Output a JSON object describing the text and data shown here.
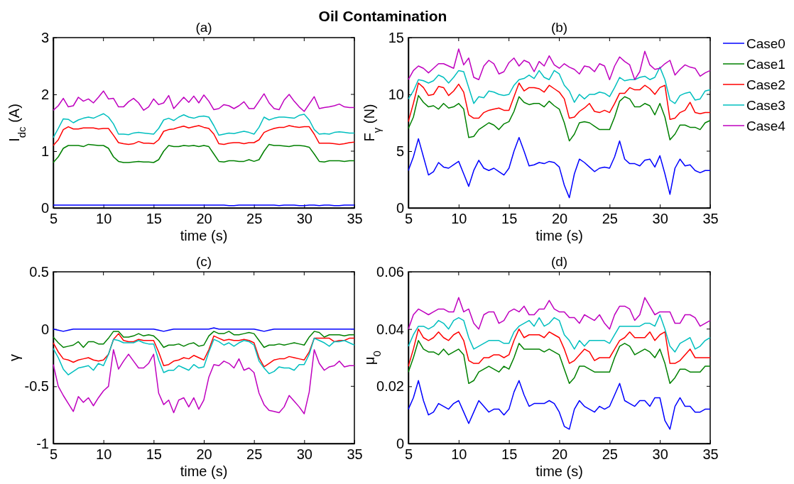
{
  "chart_data": [
    {
      "type": "other",
      "title": "Oil Contamination"
    },
    {
      "type": "line",
      "title": "(a)",
      "xlabel": "time (s)",
      "ylabel": "I$_{dc}$ (A)",
      "xlim": [
        5,
        35
      ],
      "xticks": [
        5,
        10,
        15,
        20,
        25,
        30,
        35
      ],
      "ylim": [
        0,
        3
      ],
      "yticks": [
        0,
        1,
        2,
        3
      ],
      "grid": false,
      "legend": false,
      "marker": "none",
      "line_style": "solid",
      "x": [
        5,
        5.5,
        6,
        6.5,
        7,
        7.5,
        8,
        8.5,
        9,
        9.5,
        10,
        10.5,
        11,
        11.5,
        12,
        12.5,
        13,
        13.5,
        14,
        14.5,
        15,
        15.5,
        16,
        16.5,
        17,
        17.5,
        18,
        18.5,
        19,
        19.5,
        20,
        20.5,
        21,
        21.5,
        22,
        22.5,
        23,
        23.5,
        24,
        24.5,
        25,
        25.5,
        26,
        26.5,
        27,
        27.5,
        28,
        28.5,
        29,
        29.5,
        30,
        30.5,
        31,
        31.5,
        32,
        32.5,
        33,
        33.5,
        34,
        34.5,
        35
      ],
      "series": [
        {
          "color": "#0000ff",
          "values": [
            0.05,
            0.05,
            0.05,
            0.05,
            0.05,
            0.05,
            0.05,
            0.05,
            0.05,
            0.05,
            0.05,
            0.05,
            0.05,
            0.05,
            0.05,
            0.05,
            0.05,
            0.05,
            0.05,
            0.05,
            0.05,
            0.05,
            0.05,
            0.05,
            0.05,
            0.05,
            0.05,
            0.05,
            0.05,
            0.05,
            0.05,
            0.05,
            0.05,
            0.05,
            0.05,
            0.04,
            0.04,
            0.05,
            0.05,
            0.05,
            0.05,
            0.05,
            0.05,
            0.05,
            0.05,
            0.04,
            0.05,
            0.05,
            0.05,
            0.04,
            0.04,
            0.05,
            0.05,
            0.04,
            0.05,
            0.05,
            0.04,
            0.04,
            0.05,
            0.05,
            0.05
          ]
        },
        {
          "color": "#008000",
          "values": [
            0.8,
            0.9,
            1.05,
            1.1,
            1.1,
            1.1,
            1.08,
            1.12,
            1.11,
            1.1,
            1.1,
            1.05,
            0.9,
            0.82,
            0.8,
            0.8,
            0.81,
            0.82,
            0.81,
            0.81,
            0.8,
            0.85,
            1.0,
            1.1,
            1.08,
            1.08,
            1.1,
            1.09,
            1.1,
            1.08,
            1.1,
            1.08,
            0.95,
            0.82,
            0.81,
            0.83,
            0.83,
            0.82,
            0.82,
            0.85,
            0.82,
            0.85,
            1.0,
            1.12,
            1.1,
            1.1,
            1.09,
            1.08,
            1.1,
            1.1,
            1.09,
            1.07,
            0.95,
            0.82,
            0.81,
            0.83,
            0.83,
            0.83,
            0.82,
            0.83,
            0.83
          ]
        },
        {
          "color": "#ff0000",
          "values": [
            1.1,
            1.2,
            1.38,
            1.43,
            1.39,
            1.39,
            1.41,
            1.41,
            1.41,
            1.39,
            1.4,
            1.4,
            1.28,
            1.15,
            1.13,
            1.12,
            1.13,
            1.17,
            1.14,
            1.14,
            1.13,
            1.2,
            1.35,
            1.38,
            1.39,
            1.42,
            1.44,
            1.41,
            1.43,
            1.45,
            1.42,
            1.4,
            1.3,
            1.13,
            1.12,
            1.14,
            1.15,
            1.15,
            1.13,
            1.15,
            1.15,
            1.2,
            1.33,
            1.37,
            1.4,
            1.42,
            1.42,
            1.45,
            1.43,
            1.42,
            1.43,
            1.43,
            1.3,
            1.14,
            1.14,
            1.14,
            1.13,
            1.12,
            1.13,
            1.15,
            1.16
          ]
        },
        {
          "color": "#00bfbf",
          "values": [
            1.24,
            1.4,
            1.57,
            1.56,
            1.5,
            1.55,
            1.58,
            1.6,
            1.58,
            1.62,
            1.66,
            1.6,
            1.48,
            1.3,
            1.3,
            1.29,
            1.32,
            1.33,
            1.32,
            1.31,
            1.3,
            1.4,
            1.55,
            1.58,
            1.54,
            1.6,
            1.64,
            1.6,
            1.58,
            1.61,
            1.62,
            1.6,
            1.45,
            1.28,
            1.3,
            1.32,
            1.31,
            1.33,
            1.35,
            1.33,
            1.3,
            1.42,
            1.6,
            1.55,
            1.58,
            1.6,
            1.6,
            1.59,
            1.58,
            1.63,
            1.65,
            1.55,
            1.38,
            1.3,
            1.31,
            1.3,
            1.33,
            1.34,
            1.33,
            1.32,
            1.32
          ]
        },
        {
          "color": "#bf00bf",
          "values": [
            1.72,
            1.8,
            1.93,
            1.78,
            1.8,
            1.95,
            1.88,
            1.92,
            1.85,
            1.95,
            2.06,
            1.92,
            1.93,
            1.78,
            1.78,
            1.87,
            1.93,
            1.85,
            1.72,
            1.78,
            1.92,
            1.82,
            1.85,
            1.98,
            1.75,
            1.85,
            1.95,
            1.86,
            1.97,
            1.85,
            1.99,
            1.88,
            1.73,
            1.75,
            1.82,
            1.8,
            1.75,
            1.8,
            1.87,
            1.75,
            1.75,
            1.88,
            2.01,
            1.85,
            1.75,
            1.73,
            1.9,
            2.0,
            1.88,
            1.78,
            1.7,
            1.83,
            1.96,
            1.75,
            1.77,
            1.78,
            1.8,
            1.83,
            1.78,
            1.77,
            1.77
          ]
        }
      ]
    },
    {
      "type": "line",
      "title": "(b)",
      "xlabel": "time (s)",
      "ylabel": "F$_{γ}$ (N)",
      "xlim": [
        5,
        35
      ],
      "xticks": [
        5,
        10,
        15,
        20,
        25,
        30,
        35
      ],
      "ylim": [
        0,
        15
      ],
      "yticks": [
        0,
        5,
        10,
        15
      ],
      "grid": false,
      "legend": "right",
      "marker": "none",
      "line_style": "solid",
      "x": [
        5,
        5.5,
        6,
        6.5,
        7,
        7.5,
        8,
        8.5,
        9,
        9.5,
        10,
        10.5,
        11,
        11.5,
        12,
        12.5,
        13,
        13.5,
        14,
        14.5,
        15,
        15.5,
        16,
        16.5,
        17,
        17.5,
        18,
        18.5,
        19,
        19.5,
        20,
        20.5,
        21,
        21.5,
        22,
        22.5,
        23,
        23.5,
        24,
        24.5,
        25,
        25.5,
        26,
        26.5,
        27,
        27.5,
        28,
        28.5,
        29,
        29.5,
        30,
        30.5,
        31,
        31.5,
        32,
        32.5,
        33,
        33.5,
        34,
        34.5,
        35
      ],
      "series": [
        {
          "name": "Case0",
          "color": "#0000ff",
          "values": [
            3.3,
            4.5,
            6.1,
            4.5,
            2.9,
            3.2,
            4.0,
            3.6,
            3.5,
            3.8,
            4.1,
            3.0,
            1.9,
            3.3,
            4.2,
            3.5,
            3.3,
            3.5,
            3.2,
            2.9,
            3.5,
            5.0,
            6.2,
            5.0,
            3.7,
            3.8,
            4.0,
            3.9,
            4.1,
            4.0,
            3.6,
            2.0,
            0.9,
            3.0,
            4.3,
            4.0,
            3.6,
            3.2,
            3.5,
            3.6,
            3.5,
            4.5,
            5.9,
            4.3,
            3.9,
            3.9,
            3.7,
            4.2,
            4.3,
            3.6,
            4.6,
            3.0,
            1.2,
            3.5,
            4.3,
            3.7,
            3.8,
            3.3,
            3.1,
            3.3,
            3.3
          ]
        },
        {
          "name": "Case1",
          "color": "#008000",
          "values": [
            7.0,
            8.0,
            9.9,
            9.3,
            8.9,
            9.0,
            8.7,
            9.2,
            8.8,
            8.9,
            9.2,
            8.7,
            6.2,
            6.3,
            6.9,
            7.2,
            7.5,
            7.3,
            6.9,
            7.4,
            7.6,
            8.5,
            9.8,
            9.3,
            9.1,
            9.2,
            9.2,
            8.9,
            9.4,
            9.0,
            8.7,
            7.5,
            5.9,
            6.5,
            7.5,
            7.6,
            7.5,
            7.2,
            6.9,
            6.9,
            6.9,
            8.0,
            9.4,
            9.8,
            9.6,
            8.9,
            8.9,
            9.2,
            9.0,
            8.2,
            9.2,
            8.0,
            6.0,
            6.5,
            7.3,
            7.3,
            7.1,
            7.1,
            6.9,
            7.5,
            7.7
          ]
        },
        {
          "name": "Case2",
          "color": "#ff0000",
          "values": [
            7.6,
            9.2,
            11.0,
            10.6,
            9.9,
            10.0,
            10.7,
            10.6,
            9.9,
            10.3,
            10.9,
            10.2,
            8.2,
            7.9,
            7.9,
            8.4,
            8.6,
            8.7,
            8.8,
            8.6,
            8.6,
            9.8,
            11.0,
            10.3,
            10.6,
            10.6,
            10.5,
            10.2,
            10.8,
            10.5,
            10.2,
            9.6,
            7.9,
            8.0,
            8.5,
            8.8,
            9.2,
            8.5,
            8.4,
            8.6,
            8.4,
            9.2,
            10.1,
            10.1,
            10.6,
            10.4,
            10.4,
            10.8,
            10.5,
            10.0,
            10.6,
            10.8,
            7.8,
            7.9,
            8.4,
            8.6,
            9.3,
            8.4,
            8.3,
            8.4,
            8.4
          ]
        },
        {
          "name": "Case3",
          "color": "#00bfbf",
          "values": [
            9.6,
            10.3,
            11.3,
            11.2,
            11.0,
            11.2,
            11.7,
            11.5,
            11.0,
            11.5,
            12.1,
            12.0,
            10.6,
            9.2,
            9.8,
            9.7,
            10.3,
            10.2,
            10.0,
            9.9,
            10.0,
            10.8,
            11.3,
            11.4,
            11.7,
            11.4,
            12.1,
            11.5,
            11.3,
            12.1,
            11.8,
            10.8,
            10.3,
            9.3,
            10.0,
            9.6,
            10.0,
            10.0,
            10.2,
            10.1,
            9.8,
            10.6,
            11.5,
            11.2,
            11.3,
            11.3,
            11.5,
            11.6,
            11.3,
            11.5,
            12.4,
            11.3,
            9.5,
            9.2,
            9.9,
            10.1,
            10.2,
            9.5,
            9.6,
            10.3,
            10.4
          ]
        },
        {
          "name": "Case4",
          "color": "#bf00bf",
          "values": [
            11.3,
            12.1,
            12.5,
            12.3,
            11.9,
            12.3,
            12.7,
            12.7,
            12.5,
            12.3,
            14.0,
            12.6,
            13.2,
            11.5,
            11.3,
            12.5,
            13.0,
            12.7,
            11.8,
            12.0,
            12.8,
            13.2,
            12.5,
            13.0,
            12.8,
            12.0,
            12.9,
            12.5,
            13.4,
            12.6,
            12.3,
            12.7,
            12.4,
            12.2,
            11.8,
            12.5,
            12.4,
            12.0,
            12.7,
            12.5,
            11.3,
            12.5,
            13.3,
            12.9,
            12.6,
            11.3,
            12.0,
            13.8,
            12.6,
            12.2,
            12.3,
            12.7,
            13.0,
            11.7,
            12.2,
            12.6,
            12.4,
            12.3,
            11.6,
            11.9,
            12.1
          ]
        }
      ]
    },
    {
      "type": "line",
      "title": "(c)",
      "xlabel": "time (s)",
      "ylabel": "γ",
      "xlim": [
        5,
        35
      ],
      "xticks": [
        5,
        10,
        15,
        20,
        25,
        30,
        35
      ],
      "ylim": [
        -1,
        0.5
      ],
      "yticks": [
        -1,
        -0.5,
        0,
        0.5
      ],
      "grid": false,
      "legend": false,
      "marker": "none",
      "line_style": "solid",
      "x": [
        5,
        5.5,
        6,
        6.5,
        7,
        7.5,
        8,
        8.5,
        9,
        9.5,
        10,
        10.5,
        11,
        11.5,
        12,
        12.5,
        13,
        13.5,
        14,
        14.5,
        15,
        15.5,
        16,
        16.5,
        17,
        17.5,
        18,
        18.5,
        19,
        19.5,
        20,
        20.5,
        21,
        21.5,
        22,
        22.5,
        23,
        23.5,
        24,
        24.5,
        25,
        25.5,
        26,
        26.5,
        27,
        27.5,
        28,
        28.5,
        29,
        29.5,
        30,
        30.5,
        31,
        31.5,
        32,
        32.5,
        33,
        33.5,
        34,
        34.5,
        35
      ],
      "series": [
        {
          "color": "#0000ff",
          "values": [
            0,
            -0.01,
            -0.02,
            -0.01,
            0,
            0,
            0,
            0,
            0,
            0,
            0,
            0,
            0,
            0,
            0,
            0,
            0,
            0,
            0,
            0,
            0,
            -0.01,
            -0.02,
            -0.01,
            0,
            0,
            0,
            0,
            0,
            0,
            0,
            0,
            0.01,
            0,
            0,
            0,
            0,
            0,
            0,
            0,
            0,
            -0.01,
            -0.02,
            -0.01,
            0,
            0,
            0,
            0,
            0,
            0,
            0,
            0,
            0,
            0,
            0,
            0,
            0,
            0,
            0,
            0,
            0
          ]
        },
        {
          "color": "#008000",
          "values": [
            -0.07,
            -0.12,
            -0.16,
            -0.15,
            -0.14,
            -0.11,
            -0.16,
            -0.11,
            -0.11,
            -0.13,
            -0.13,
            -0.08,
            -0.02,
            -0.02,
            -0.07,
            -0.07,
            -0.06,
            -0.04,
            -0.06,
            -0.05,
            -0.06,
            -0.1,
            -0.16,
            -0.14,
            -0.14,
            -0.13,
            -0.15,
            -0.13,
            -0.12,
            -0.15,
            -0.14,
            -0.06,
            -0.02,
            -0.04,
            -0.04,
            -0.02,
            -0.05,
            -0.05,
            -0.04,
            -0.03,
            -0.04,
            -0.1,
            -0.16,
            -0.14,
            -0.14,
            -0.13,
            -0.14,
            -0.13,
            -0.12,
            -0.13,
            -0.14,
            -0.07,
            -0.02,
            -0.03,
            -0.07,
            -0.05,
            -0.05,
            -0.05,
            -0.06,
            -0.05,
            -0.05
          ]
        },
        {
          "color": "#ff0000",
          "values": [
            -0.12,
            -0.2,
            -0.26,
            -0.27,
            -0.29,
            -0.27,
            -0.26,
            -0.25,
            -0.27,
            -0.28,
            -0.27,
            -0.22,
            -0.09,
            -0.04,
            -0.1,
            -0.11,
            -0.11,
            -0.09,
            -0.1,
            -0.1,
            -0.1,
            -0.2,
            -0.32,
            -0.31,
            -0.28,
            -0.27,
            -0.25,
            -0.26,
            -0.23,
            -0.25,
            -0.27,
            -0.18,
            -0.06,
            -0.08,
            -0.1,
            -0.09,
            -0.1,
            -0.1,
            -0.09,
            -0.1,
            -0.12,
            -0.25,
            -0.33,
            -0.3,
            -0.27,
            -0.26,
            -0.26,
            -0.24,
            -0.25,
            -0.26,
            -0.27,
            -0.2,
            -0.08,
            -0.08,
            -0.08,
            -0.08,
            -0.11,
            -0.1,
            -0.1,
            -0.08,
            -0.08
          ]
        },
        {
          "color": "#00bfbf",
          "values": [
            -0.17,
            -0.25,
            -0.35,
            -0.4,
            -0.37,
            -0.34,
            -0.33,
            -0.32,
            -0.36,
            -0.3,
            -0.32,
            -0.22,
            -0.09,
            -0.1,
            -0.12,
            -0.12,
            -0.12,
            -0.1,
            -0.12,
            -0.13,
            -0.13,
            -0.27,
            -0.38,
            -0.36,
            -0.36,
            -0.32,
            -0.34,
            -0.36,
            -0.31,
            -0.34,
            -0.33,
            -0.2,
            -0.09,
            -0.11,
            -0.14,
            -0.12,
            -0.15,
            -0.12,
            -0.1,
            -0.11,
            -0.14,
            -0.28,
            -0.34,
            -0.39,
            -0.37,
            -0.33,
            -0.34,
            -0.34,
            -0.36,
            -0.31,
            -0.31,
            -0.22,
            -0.08,
            -0.1,
            -0.12,
            -0.15,
            -0.11,
            -0.11,
            -0.1,
            -0.12,
            -0.14
          ]
        },
        {
          "color": "#bf00bf",
          "values": [
            -0.31,
            -0.5,
            -0.58,
            -0.65,
            -0.72,
            -0.59,
            -0.64,
            -0.6,
            -0.67,
            -0.6,
            -0.54,
            -0.5,
            -0.18,
            -0.35,
            -0.28,
            -0.22,
            -0.28,
            -0.34,
            -0.34,
            -0.3,
            -0.22,
            -0.56,
            -0.66,
            -0.62,
            -0.73,
            -0.62,
            -0.6,
            -0.68,
            -0.6,
            -0.7,
            -0.62,
            -0.42,
            -0.31,
            -0.32,
            -0.28,
            -0.3,
            -0.34,
            -0.26,
            -0.36,
            -0.34,
            -0.38,
            -0.56,
            -0.66,
            -0.71,
            -0.72,
            -0.73,
            -0.68,
            -0.58,
            -0.63,
            -0.68,
            -0.74,
            -0.55,
            -0.18,
            -0.3,
            -0.36,
            -0.33,
            -0.32,
            -0.28,
            -0.33,
            -0.32,
            -0.32
          ]
        }
      ]
    },
    {
      "type": "line",
      "title": "(d)",
      "xlabel": "time (s)",
      "ylabel": "μ$_{0}$",
      "xlim": [
        5,
        35
      ],
      "xticks": [
        5,
        10,
        15,
        20,
        25,
        30,
        35
      ],
      "ylim": [
        0,
        0.06
      ],
      "yticks": [
        0,
        0.02,
        0.04,
        0.06
      ],
      "grid": false,
      "legend": false,
      "marker": "none",
      "line_style": "solid",
      "x": [
        5,
        5.5,
        6,
        6.5,
        7,
        7.5,
        8,
        8.5,
        9,
        9.5,
        10,
        10.5,
        11,
        11.5,
        12,
        12.5,
        13,
        13.5,
        14,
        14.5,
        15,
        15.5,
        16,
        16.5,
        17,
        17.5,
        18,
        18.5,
        19,
        19.5,
        20,
        20.5,
        21,
        21.5,
        22,
        22.5,
        23,
        23.5,
        24,
        24.5,
        25,
        25.5,
        26,
        26.5,
        27,
        27.5,
        28,
        28.5,
        29,
        29.5,
        30,
        30.5,
        31,
        31.5,
        32,
        32.5,
        33,
        33.5,
        34,
        34.5,
        35
      ],
      "series": [
        {
          "color": "#0000ff",
          "values": [
            0.012,
            0.016,
            0.022,
            0.015,
            0.01,
            0.011,
            0.014,
            0.013,
            0.012,
            0.014,
            0.015,
            0.011,
            0.007,
            0.011,
            0.015,
            0.013,
            0.011,
            0.012,
            0.012,
            0.01,
            0.012,
            0.018,
            0.022,
            0.017,
            0.013,
            0.014,
            0.014,
            0.014,
            0.015,
            0.014,
            0.011,
            0.006,
            0.005,
            0.012,
            0.015,
            0.013,
            0.012,
            0.011,
            0.013,
            0.012,
            0.013,
            0.017,
            0.021,
            0.015,
            0.014,
            0.013,
            0.015,
            0.015,
            0.013,
            0.016,
            0.016,
            0.008,
            0.005,
            0.013,
            0.016,
            0.013,
            0.013,
            0.011,
            0.011,
            0.012,
            0.012
          ]
        },
        {
          "color": "#008000",
          "values": [
            0.025,
            0.03,
            0.036,
            0.033,
            0.032,
            0.032,
            0.031,
            0.033,
            0.031,
            0.032,
            0.033,
            0.031,
            0.021,
            0.022,
            0.025,
            0.026,
            0.027,
            0.026,
            0.025,
            0.027,
            0.026,
            0.03,
            0.035,
            0.033,
            0.033,
            0.033,
            0.033,
            0.032,
            0.033,
            0.032,
            0.031,
            0.026,
            0.021,
            0.023,
            0.027,
            0.027,
            0.026,
            0.025,
            0.025,
            0.025,
            0.025,
            0.03,
            0.034,
            0.035,
            0.034,
            0.031,
            0.032,
            0.033,
            0.032,
            0.03,
            0.033,
            0.028,
            0.021,
            0.023,
            0.026,
            0.026,
            0.025,
            0.025,
            0.025,
            0.027,
            0.027
          ]
        },
        {
          "color": "#ff0000",
          "values": [
            0.027,
            0.033,
            0.04,
            0.037,
            0.036,
            0.037,
            0.039,
            0.037,
            0.036,
            0.038,
            0.039,
            0.036,
            0.029,
            0.028,
            0.028,
            0.03,
            0.03,
            0.031,
            0.031,
            0.03,
            0.031,
            0.036,
            0.04,
            0.037,
            0.038,
            0.038,
            0.038,
            0.037,
            0.039,
            0.038,
            0.037,
            0.033,
            0.028,
            0.029,
            0.031,
            0.033,
            0.032,
            0.029,
            0.03,
            0.03,
            0.03,
            0.033,
            0.036,
            0.037,
            0.039,
            0.037,
            0.037,
            0.037,
            0.039,
            0.036,
            0.038,
            0.039,
            0.028,
            0.028,
            0.029,
            0.031,
            0.033,
            0.03,
            0.03,
            0.03,
            0.03
          ]
        },
        {
          "color": "#00bfbf",
          "values": [
            0.034,
            0.038,
            0.041,
            0.041,
            0.04,
            0.041,
            0.043,
            0.042,
            0.04,
            0.043,
            0.044,
            0.043,
            0.037,
            0.033,
            0.034,
            0.035,
            0.036,
            0.036,
            0.036,
            0.035,
            0.035,
            0.039,
            0.041,
            0.042,
            0.043,
            0.041,
            0.044,
            0.041,
            0.042,
            0.044,
            0.043,
            0.038,
            0.036,
            0.033,
            0.036,
            0.034,
            0.036,
            0.036,
            0.036,
            0.036,
            0.035,
            0.038,
            0.041,
            0.041,
            0.041,
            0.041,
            0.041,
            0.042,
            0.042,
            0.041,
            0.045,
            0.04,
            0.034,
            0.032,
            0.035,
            0.036,
            0.037,
            0.033,
            0.034,
            0.036,
            0.037
          ]
        },
        {
          "color": "#bf00bf",
          "values": [
            0.04,
            0.045,
            0.047,
            0.046,
            0.045,
            0.046,
            0.047,
            0.047,
            0.046,
            0.046,
            0.051,
            0.046,
            0.047,
            0.042,
            0.04,
            0.045,
            0.046,
            0.046,
            0.042,
            0.043,
            0.046,
            0.047,
            0.046,
            0.048,
            0.045,
            0.045,
            0.047,
            0.047,
            0.05,
            0.047,
            0.046,
            0.046,
            0.044,
            0.044,
            0.042,
            0.045,
            0.044,
            0.043,
            0.045,
            0.042,
            0.04,
            0.045,
            0.048,
            0.048,
            0.047,
            0.043,
            0.045,
            0.051,
            0.048,
            0.045,
            0.046,
            0.046,
            0.046,
            0.042,
            0.042,
            0.045,
            0.045,
            0.044,
            0.041,
            0.042,
            0.043
          ]
        }
      ]
    }
  ]
}
